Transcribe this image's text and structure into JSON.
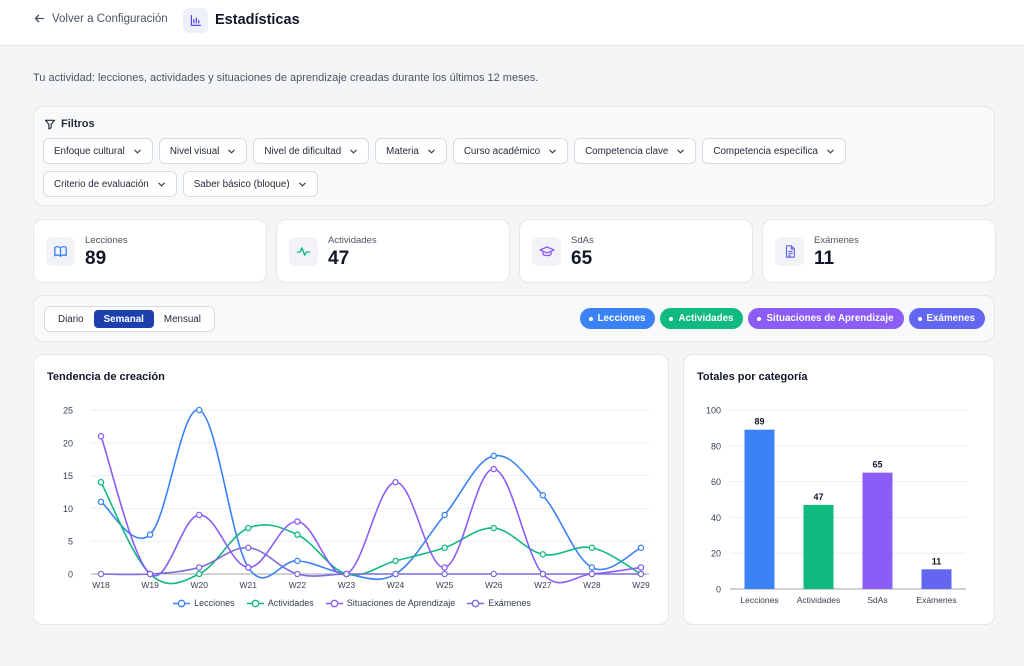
{
  "header": {
    "back_label": "Volver a Configuración",
    "title": "Estadísticas"
  },
  "subtitle": "Tu actividad: lecciones, actividades y situaciones de aprendizaje creadas durante los últimos 12 meses.",
  "filters": {
    "title": "Filtros",
    "items": [
      "Enfoque cultural",
      "Nivel visual",
      "Nivel de dificultad",
      "Materia",
      "Curso académico",
      "Competencia clave",
      "Competencia específica",
      "Criterio de evaluación",
      "Saber básico (bloque)"
    ]
  },
  "stats": [
    {
      "label": "Lecciones",
      "value": "89",
      "icon": "book-icon"
    },
    {
      "label": "Actividades",
      "value": "47",
      "icon": "activity-icon"
    },
    {
      "label": "SdAs",
      "value": "65",
      "icon": "graduation-cap-icon"
    },
    {
      "label": "Exámenes",
      "value": "11",
      "icon": "document-icon"
    }
  ],
  "period": {
    "options": [
      "Diario",
      "Semanal",
      "Mensual"
    ],
    "selected": "Semanal"
  },
  "series_toggles": [
    {
      "label": "Lecciones",
      "color": "#3b82f6"
    },
    {
      "label": "Actividades",
      "color": "#10b981"
    },
    {
      "label": "Situaciones de Aprendizaje",
      "color": "#8b5cf6"
    },
    {
      "label": "Exámenes",
      "color": "#6366f1"
    }
  ],
  "chart_data": [
    {
      "type": "line",
      "title": "Tendencia de creación",
      "categories": [
        "W18",
        "W19",
        "W20",
        "W21",
        "W22",
        "W23",
        "W24",
        "W25",
        "W26",
        "W27",
        "W28",
        "W29"
      ],
      "ylim": [
        0,
        25
      ],
      "yticks": [
        0,
        5,
        10,
        15,
        20,
        25
      ],
      "grid": true,
      "legend_position": "bottom",
      "series": [
        {
          "name": "Lecciones",
          "color": "#3b82f6",
          "values": [
            11,
            6,
            25,
            1,
            2,
            0,
            0,
            9,
            18,
            12,
            1,
            4
          ]
        },
        {
          "name": "Actividades",
          "color": "#10b981",
          "values": [
            14,
            0,
            0,
            7,
            6,
            0,
            2,
            4,
            7,
            3,
            4,
            0
          ]
        },
        {
          "name": "Situaciones de Aprendizaje",
          "color": "#8b5cf6",
          "values": [
            21,
            0,
            9,
            1,
            8,
            0,
            14,
            1,
            16,
            0,
            0,
            1
          ]
        },
        {
          "name": "Exámenes",
          "color": "#7c6cdc",
          "values": [
            0,
            0,
            1,
            4,
            0,
            0,
            0,
            0,
            0,
            0,
            0,
            0
          ]
        }
      ]
    },
    {
      "type": "bar",
      "title": "Totales por categoría",
      "categories": [
        "Lecciones",
        "Actividades",
        "SdAs",
        "Exámenes"
      ],
      "values": [
        89,
        47,
        65,
        11
      ],
      "colors": [
        "#3b82f6",
        "#10b981",
        "#8b5cf6",
        "#6366f1"
      ],
      "ylim": [
        0,
        100
      ],
      "yticks": [
        0,
        20,
        40,
        60,
        80,
        100
      ],
      "grid": true
    }
  ]
}
